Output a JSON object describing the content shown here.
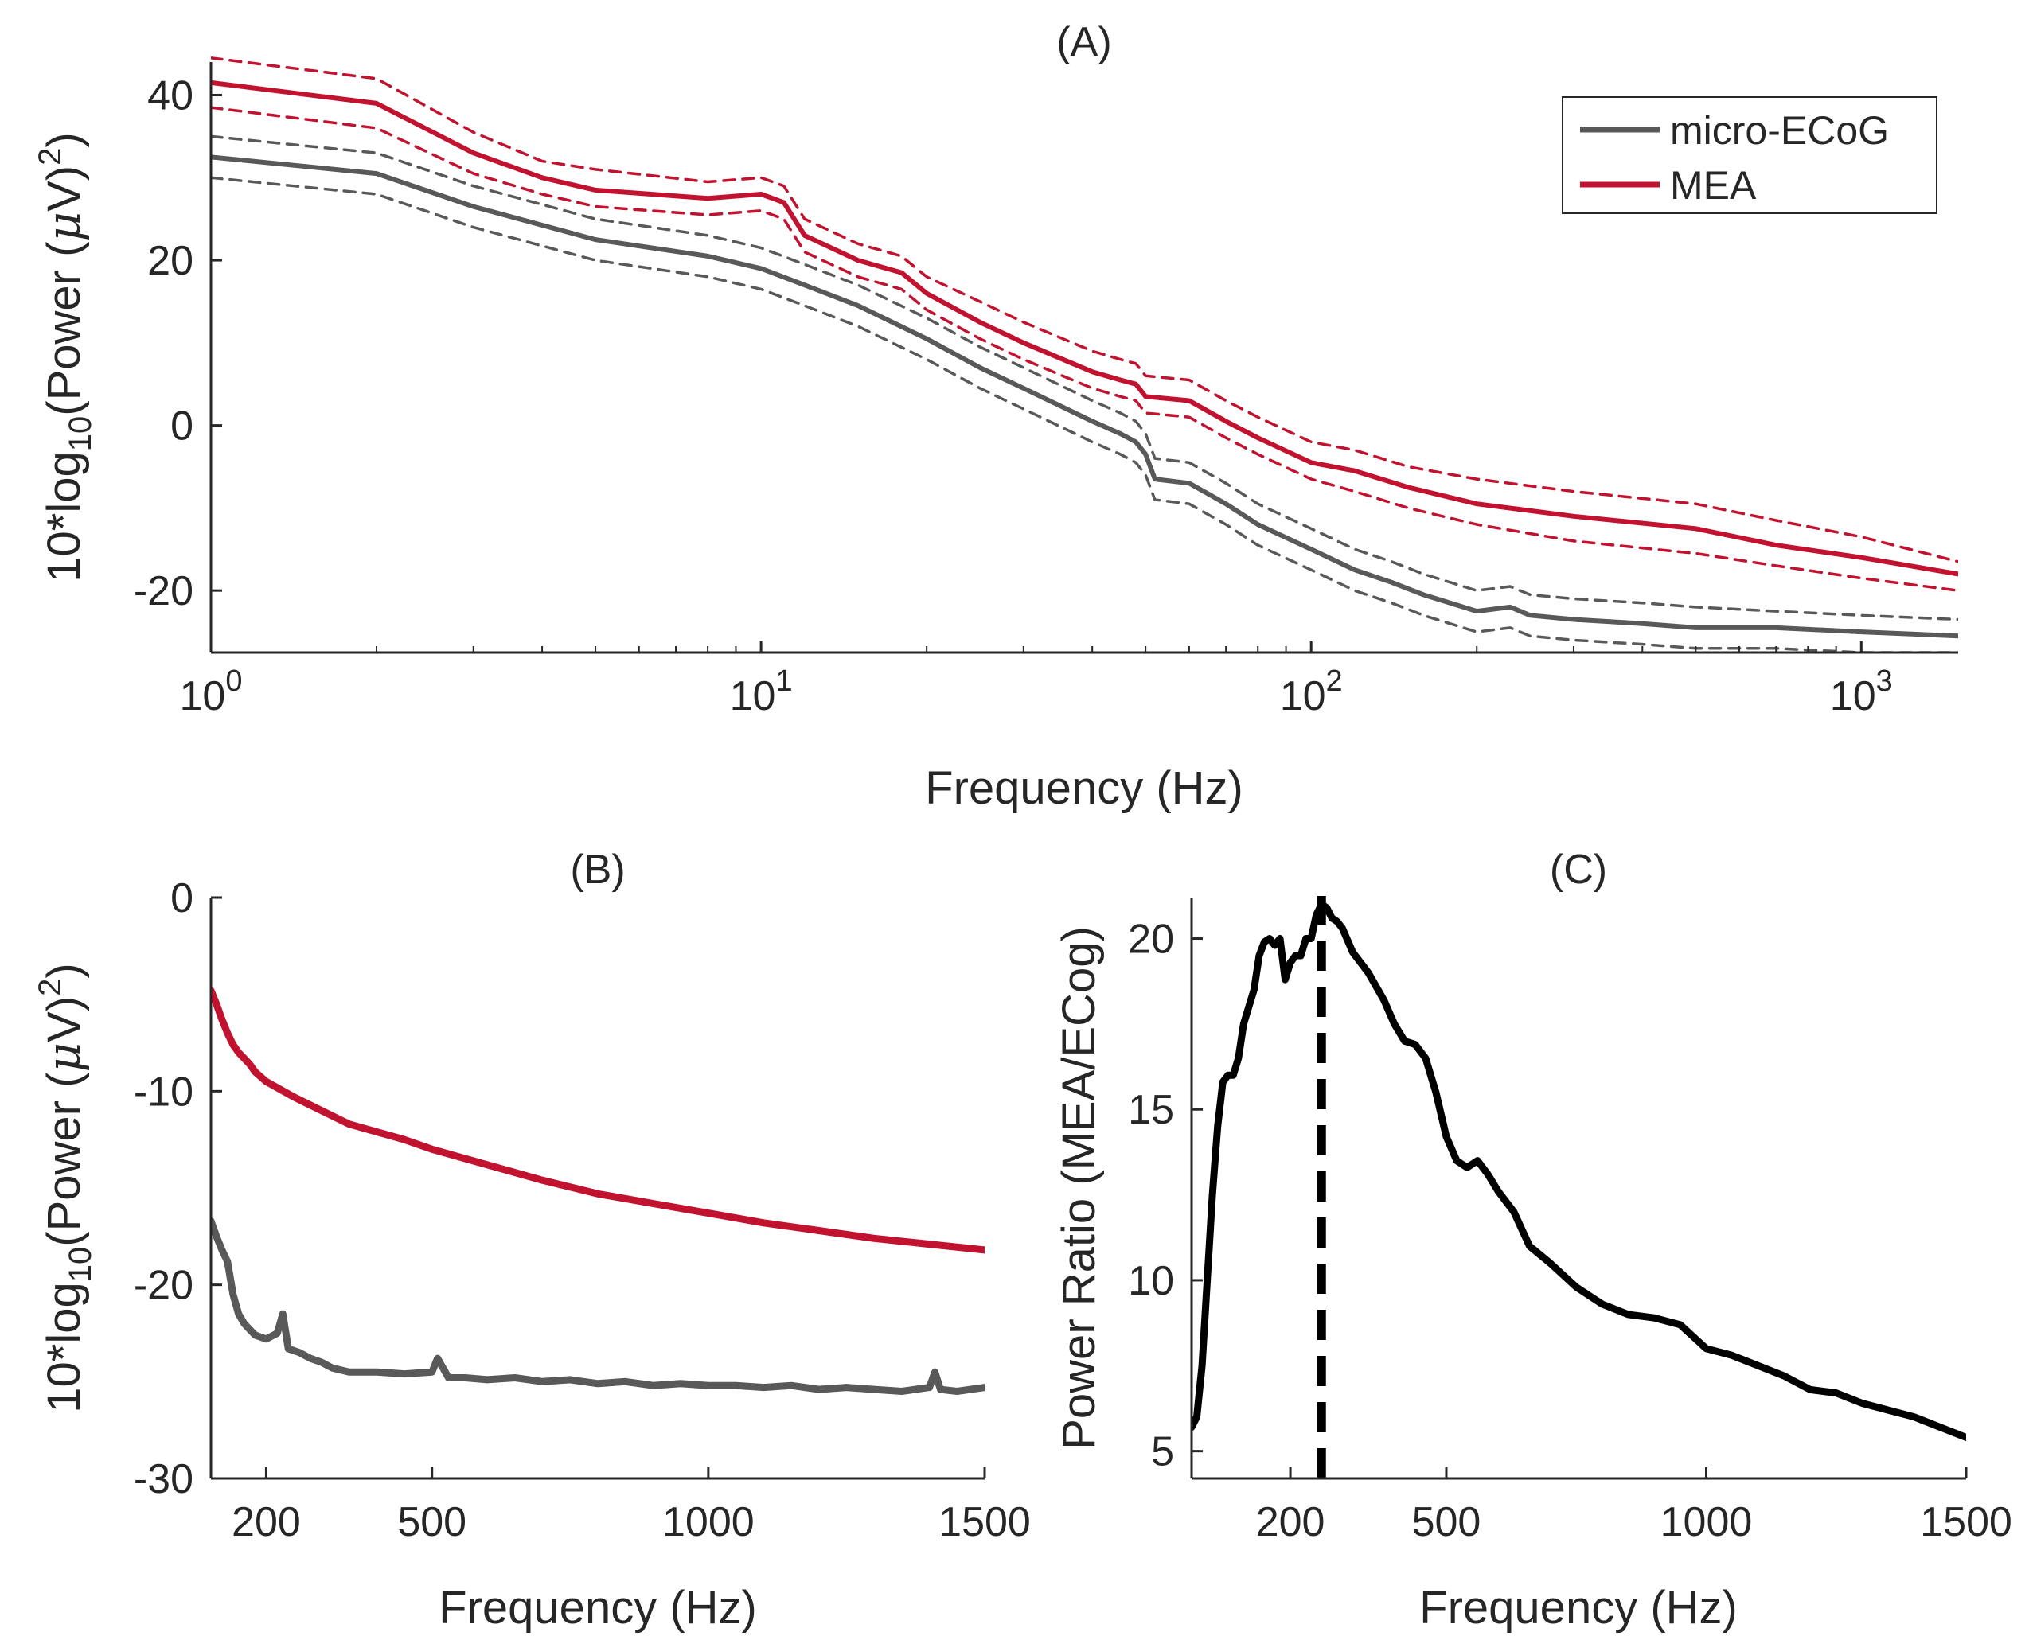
{
  "colors": {
    "ecog": "#595959",
    "mea": "#c1122f",
    "ratio": "#000000",
    "axis": "#262626"
  },
  "chart_data": [
    {
      "type": "line",
      "id": "A",
      "title": "(A)",
      "xscale": "log",
      "xlabel": "Frequency (Hz)",
      "ylabel": {
        "pre": "10*log",
        "sub": "10",
        "mid": "(Power (",
        "mu": "μ",
        "v": "V)",
        "sup": "2",
        "post": ")"
      },
      "xlim": [
        1,
        1500
      ],
      "ylim": [
        -27.5,
        44
      ],
      "xticks": [
        {
          "value": 1,
          "base": "10",
          "exp": "0"
        },
        {
          "value": 10,
          "base": "10",
          "exp": "1"
        },
        {
          "value": 100,
          "base": "10",
          "exp": "2"
        },
        {
          "value": 1000,
          "base": "10",
          "exp": "3"
        }
      ],
      "yticks": [
        {
          "value": -20,
          "label": "-20"
        },
        {
          "value": 0,
          "label": "0"
        },
        {
          "value": 20,
          "label": "20"
        },
        {
          "value": 40,
          "label": "40"
        }
      ],
      "legend": {
        "position": "top-right",
        "entries": [
          {
            "name": "micro-ECoG",
            "color": "#595959"
          },
          {
            "name": "MEA",
            "color": "#c1122f"
          }
        ]
      },
      "series": [
        {
          "name": "micro-ECoG",
          "color": "#595959",
          "style": "solid",
          "x": [
            1,
            2,
            3,
            5,
            8,
            10,
            12,
            15,
            20,
            25,
            30,
            40,
            45,
            48,
            50,
            52,
            60,
            70,
            80,
            100,
            120,
            140,
            160,
            200,
            230,
            250,
            300,
            400,
            500,
            700,
            1000,
            1500
          ],
          "y": [
            32.5,
            30.5,
            26.5,
            22.5,
            20.5,
            19,
            17,
            14.5,
            10.5,
            7,
            4.5,
            0.5,
            -1,
            -2,
            -3.5,
            -6.5,
            -7,
            -9.5,
            -12,
            -15,
            -17.5,
            -19,
            -20.5,
            -22.5,
            -22,
            -23,
            -23.5,
            -24,
            -24.5,
            -24.5,
            -25,
            -25.5
          ]
        },
        {
          "name": "micro-ECoG upper bound",
          "color": "#595959",
          "style": "dashed",
          "x": [
            1,
            2,
            3,
            5,
            8,
            10,
            12,
            15,
            20,
            25,
            30,
            40,
            45,
            48,
            50,
            52,
            60,
            70,
            80,
            100,
            120,
            140,
            160,
            200,
            230,
            250,
            300,
            400,
            500,
            700,
            1000,
            1500
          ],
          "y": [
            35,
            33,
            29,
            25,
            23,
            21.5,
            19.5,
            17,
            13,
            9.5,
            7,
            3,
            1.5,
            0.5,
            -1,
            -4,
            -4.5,
            -7,
            -9.5,
            -12.5,
            -15,
            -16.5,
            -18,
            -20,
            -19.5,
            -20.5,
            -21,
            -21.5,
            -22,
            -22.5,
            -23,
            -23.5
          ]
        },
        {
          "name": "micro-ECoG lower bound",
          "color": "#595959",
          "style": "dashed",
          "x": [
            1,
            2,
            3,
            5,
            8,
            10,
            12,
            15,
            20,
            25,
            30,
            40,
            45,
            48,
            50,
            52,
            60,
            70,
            80,
            100,
            120,
            140,
            160,
            200,
            230,
            250,
            300,
            400,
            500,
            700,
            1000,
            1500
          ],
          "y": [
            30,
            28,
            24,
            20,
            18,
            16.5,
            14.5,
            12,
            8,
            4.5,
            2,
            -2,
            -3.5,
            -4.5,
            -6,
            -9,
            -9.5,
            -12,
            -14.5,
            -17.5,
            -20,
            -21.5,
            -23,
            -25,
            -24.5,
            -25.5,
            -26,
            -26.5,
            -27,
            -27,
            -27.5,
            -27.5
          ]
        },
        {
          "name": "MEA",
          "color": "#c1122f",
          "style": "solid",
          "x": [
            1,
            2,
            3,
            4,
            5,
            8,
            10,
            11,
            12,
            15,
            18,
            20,
            25,
            30,
            40,
            45,
            48,
            50,
            60,
            70,
            80,
            100,
            120,
            150,
            200,
            300,
            500,
            700,
            1000,
            1500
          ],
          "y": [
            41.5,
            39,
            33,
            30,
            28.5,
            27.5,
            28,
            27,
            23,
            20,
            18.5,
            16,
            12.5,
            10,
            6.5,
            5.5,
            5,
            3.5,
            3,
            0.5,
            -1.5,
            -4.5,
            -5.5,
            -7.5,
            -9.5,
            -11,
            -12.5,
            -14.5,
            -16,
            -18
          ]
        },
        {
          "name": "MEA upper bound",
          "color": "#c1122f",
          "style": "dashed",
          "x": [
            1,
            2,
            3,
            4,
            5,
            8,
            10,
            11,
            12,
            15,
            18,
            20,
            25,
            30,
            40,
            45,
            48,
            50,
            60,
            70,
            80,
            100,
            120,
            150,
            200,
            300,
            500,
            700,
            1000,
            1500
          ],
          "y": [
            44.5,
            42,
            35.5,
            32,
            31,
            29.5,
            30,
            29,
            25,
            22,
            20.5,
            18,
            15,
            12.5,
            9,
            8,
            7.5,
            6,
            5.5,
            3,
            1,
            -2,
            -3,
            -5,
            -6.5,
            -8,
            -9.5,
            -11.5,
            -13.5,
            -16.5
          ]
        },
        {
          "name": "MEA lower bound",
          "color": "#c1122f",
          "style": "dashed",
          "x": [
            1,
            2,
            3,
            4,
            5,
            8,
            10,
            11,
            12,
            15,
            18,
            20,
            25,
            30,
            40,
            45,
            48,
            50,
            60,
            70,
            80,
            100,
            120,
            150,
            200,
            300,
            500,
            700,
            1000,
            1500
          ],
          "y": [
            38.5,
            36,
            30.5,
            28,
            26.5,
            25.5,
            26,
            25,
            21,
            18,
            16.5,
            14,
            10.5,
            8,
            4.5,
            3.5,
            3,
            1.5,
            1,
            -1.5,
            -3.5,
            -6.5,
            -8,
            -10,
            -12,
            -14,
            -15.5,
            -17,
            -18.5,
            -20
          ]
        }
      ]
    },
    {
      "type": "line",
      "id": "B",
      "title": "(B)",
      "xscale": "linear",
      "xlabel": "Frequency (Hz)",
      "ylabel": {
        "pre": "10*log",
        "sub": "10",
        "mid": "(Power (",
        "mu": "μ",
        "v": "V)",
        "sup": "2",
        "post": ")"
      },
      "xlim": [
        100,
        1500
      ],
      "ylim": [
        -30,
        0
      ],
      "xticks": [
        {
          "value": 200,
          "label": "200"
        },
        {
          "value": 500,
          "label": "500"
        },
        {
          "value": 1000,
          "label": "1000"
        },
        {
          "value": 1500,
          "label": "1500"
        }
      ],
      "yticks": [
        {
          "value": -30,
          "label": "-30"
        },
        {
          "value": -20,
          "label": "-20"
        },
        {
          "value": -10,
          "label": "-10"
        },
        {
          "value": 0,
          "label": "0"
        }
      ],
      "series": [
        {
          "name": "micro-ECoG",
          "color": "#595959",
          "style": "solid",
          "x": [
            100,
            110,
            120,
            130,
            140,
            150,
            160,
            170,
            180,
            200,
            220,
            230,
            240,
            260,
            280,
            300,
            320,
            350,
            400,
            450,
            500,
            510,
            530,
            560,
            600,
            650,
            700,
            750,
            800,
            850,
            900,
            950,
            1000,
            1050,
            1100,
            1150,
            1200,
            1250,
            1300,
            1350,
            1400,
            1410,
            1420,
            1450,
            1500
          ],
          "y": [
            -16.7,
            -17.5,
            -18.2,
            -18.8,
            -20.5,
            -21.5,
            -22,
            -22.3,
            -22.6,
            -22.8,
            -22.5,
            -21.5,
            -23.3,
            -23.5,
            -23.8,
            -24,
            -24.3,
            -24.5,
            -24.5,
            -24.6,
            -24.5,
            -23.8,
            -24.8,
            -24.8,
            -24.9,
            -24.8,
            -25,
            -24.9,
            -25.1,
            -25,
            -25.2,
            -25.1,
            -25.2,
            -25.2,
            -25.3,
            -25.2,
            -25.4,
            -25.3,
            -25.4,
            -25.5,
            -25.3,
            -24.5,
            -25.4,
            -25.5,
            -25.3
          ]
        },
        {
          "name": "MEA",
          "color": "#c1122f",
          "style": "solid",
          "x": [
            100,
            110,
            120,
            130,
            140,
            150,
            160,
            170,
            180,
            200,
            250,
            300,
            350,
            400,
            450,
            500,
            600,
            700,
            800,
            900,
            1000,
            1100,
            1200,
            1300,
            1400,
            1500
          ],
          "y": [
            -4.8,
            -5.5,
            -6.3,
            -7,
            -7.6,
            -8,
            -8.3,
            -8.6,
            -9,
            -9.5,
            -10.3,
            -11,
            -11.7,
            -12.1,
            -12.5,
            -13,
            -13.8,
            -14.6,
            -15.3,
            -15.8,
            -16.3,
            -16.8,
            -17.2,
            -17.6,
            -17.9,
            -18.2
          ]
        }
      ]
    },
    {
      "type": "line",
      "id": "C",
      "title": "(C)",
      "xscale": "linear",
      "xlabel": "Frequency (Hz)",
      "ylabel": "Power Ratio (MEA/ECog)",
      "xlim": [
        10,
        1500
      ],
      "ylim": [
        4.2,
        21.2
      ],
      "xticks": [
        {
          "value": 200,
          "label": "200"
        },
        {
          "value": 500,
          "label": "500"
        },
        {
          "value": 1000,
          "label": "1000"
        },
        {
          "value": 1500,
          "label": "1500"
        }
      ],
      "yticks": [
        {
          "value": 5,
          "label": "5"
        },
        {
          "value": 10,
          "label": "10"
        },
        {
          "value": 15,
          "label": "15"
        },
        {
          "value": 20,
          "label": "20"
        }
      ],
      "vline": {
        "x": 260,
        "style": "dashed",
        "color": "#000000"
      },
      "series": [
        {
          "name": "Power Ratio",
          "color": "#000000",
          "style": "solid",
          "x": [
            10,
            20,
            30,
            40,
            50,
            60,
            70,
            80,
            90,
            100,
            110,
            120,
            130,
            140,
            150,
            160,
            170,
            180,
            190,
            200,
            210,
            220,
            230,
            240,
            250,
            260,
            270,
            280,
            290,
            300,
            320,
            350,
            380,
            400,
            420,
            440,
            460,
            480,
            500,
            520,
            540,
            560,
            580,
            600,
            630,
            660,
            700,
            750,
            800,
            850,
            900,
            950,
            1000,
            1050,
            1100,
            1150,
            1200,
            1250,
            1300,
            1350,
            1400,
            1450,
            1500
          ],
          "y": [
            5.7,
            6,
            7.5,
            10,
            12.5,
            14.5,
            15.8,
            16,
            16,
            16.5,
            17.5,
            18,
            18.5,
            19.5,
            19.9,
            20,
            19.8,
            20,
            18.8,
            19.3,
            19.5,
            19.5,
            20,
            20,
            20.7,
            21,
            20.9,
            20.6,
            20.5,
            20.3,
            19.6,
            19,
            18.2,
            17.5,
            17,
            16.9,
            16.5,
            15.5,
            14.2,
            13.5,
            13.3,
            13.5,
            13.1,
            12.6,
            12,
            11,
            10.5,
            9.8,
            9.3,
            9,
            8.9,
            8.7,
            8,
            7.8,
            7.5,
            7.2,
            6.8,
            6.7,
            6.4,
            6.2,
            6,
            5.7,
            5.4
          ]
        }
      ]
    }
  ]
}
